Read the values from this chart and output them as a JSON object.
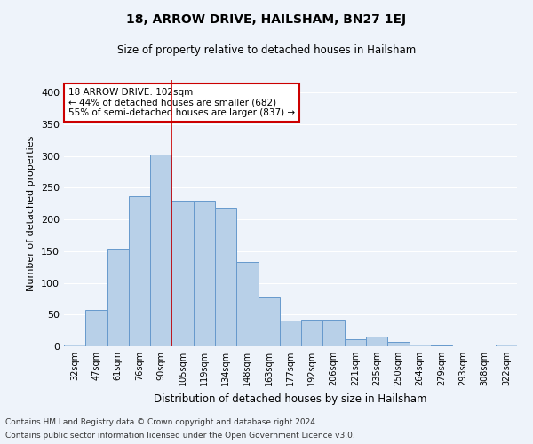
{
  "title1": "18, ARROW DRIVE, HAILSHAM, BN27 1EJ",
  "title2": "Size of property relative to detached houses in Hailsham",
  "xlabel": "Distribution of detached houses by size in Hailsham",
  "ylabel": "Number of detached properties",
  "footer1": "Contains HM Land Registry data © Crown copyright and database right 2024.",
  "footer2": "Contains public sector information licensed under the Open Government Licence v3.0.",
  "categories": [
    "32sqm",
    "47sqm",
    "61sqm",
    "76sqm",
    "90sqm",
    "105sqm",
    "119sqm",
    "134sqm",
    "148sqm",
    "163sqm",
    "177sqm",
    "192sqm",
    "206sqm",
    "221sqm",
    "235sqm",
    "250sqm",
    "264sqm",
    "279sqm",
    "293sqm",
    "308sqm",
    "322sqm"
  ],
  "values": [
    3,
    57,
    154,
    236,
    303,
    230,
    230,
    218,
    133,
    77,
    41,
    42,
    42,
    11,
    16,
    7,
    3,
    1,
    0,
    0,
    3
  ],
  "bar_color": "#b8d0e8",
  "bar_edge_color": "#6699cc",
  "background_color": "#eef3fa",
  "grid_color": "#ffffff",
  "annotation_box_line1": "18 ARROW DRIVE: 102sqm",
  "annotation_box_line2": "← 44% of detached houses are smaller (682)",
  "annotation_box_line3": "55% of semi-detached houses are larger (837) →",
  "annotation_box_color": "#ffffff",
  "annotation_box_edge": "#cc0000",
  "vline_x": 4.5,
  "vline_color": "#cc0000",
  "ylim": [
    0,
    420
  ],
  "yticks": [
    0,
    50,
    100,
    150,
    200,
    250,
    300,
    350,
    400
  ]
}
